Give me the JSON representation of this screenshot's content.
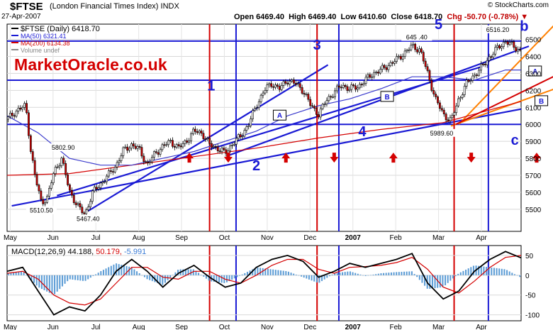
{
  "header": {
    "symbol": "$FTSE",
    "index_name": "(London Financial Times Index)",
    "index_type": "INDX",
    "date": "27-Apr-2007",
    "open": "Open 6469.40",
    "high": "High 6469.40",
    "low": "Low 6410.60",
    "close": "Close 6418.70",
    "chg": "Chg -50.70 (-0.78%)",
    "copyright": "© StockCharts.com"
  },
  "watermark": "MarketOracle.co.uk",
  "colors": {
    "accent_blue": "#1a1ad4",
    "accent_red": "#d40000",
    "orange": "#ff8000",
    "up_candle": "#ffffff",
    "down_candle": "#d40000"
  },
  "chart_data": {
    "type": "line",
    "title": "$FTSE (Daily) 6418.70",
    "legend": [
      {
        "label": "$FTSE (Daily) 6418.70",
        "color": "#000000"
      },
      {
        "label": "MA(50) 6321.41",
        "color": "#1a1ad4"
      },
      {
        "label": "MA(200) 6134.38",
        "color": "#d40000"
      },
      {
        "label": "Volume undef",
        "color": "#888888"
      }
    ],
    "x_ticks": [
      "May",
      "Jun",
      "Jul",
      "Aug",
      "Sep",
      "Oct",
      "Nov",
      "Dec",
      "2007",
      "Feb",
      "Mar",
      "Apr"
    ],
    "y_ticks": [
      5500,
      5600,
      5700,
      5800,
      5900,
      6000,
      6100,
      6200,
      6300,
      6400,
      6500
    ],
    "ylim": [
      5370,
      6590
    ],
    "price_points": [
      [
        0.0,
        6030
      ],
      [
        0.6,
        6080
      ],
      [
        1.2,
        6110
      ],
      [
        1.5,
        5860
      ],
      [
        1.8,
        5690
      ],
      [
        2.2,
        5540
      ],
      [
        2.6,
        5570
      ],
      [
        3.0,
        5720
      ],
      [
        3.5,
        5800
      ],
      [
        4.0,
        5610
      ],
      [
        4.5,
        5520
      ],
      [
        5.0,
        5470
      ],
      [
        5.5,
        5600
      ],
      [
        6.0,
        5650
      ],
      [
        6.5,
        5700
      ],
      [
        7.0,
        5760
      ],
      [
        7.5,
        5850
      ],
      [
        8.0,
        5880
      ],
      [
        8.5,
        5850
      ],
      [
        9.0,
        5760
      ],
      [
        9.5,
        5830
      ],
      [
        10.0,
        5870
      ],
      [
        10.5,
        5900
      ],
      [
        11.0,
        5860
      ],
      [
        11.5,
        5900
      ],
      [
        12.0,
        5960
      ],
      [
        12.5,
        5950
      ],
      [
        13.0,
        5880
      ],
      [
        13.5,
        5860
      ],
      [
        14.0,
        5830
      ],
      [
        14.5,
        5890
      ],
      [
        15.0,
        5930
      ],
      [
        15.5,
        6000
      ],
      [
        16.0,
        6110
      ],
      [
        16.5,
        6200
      ],
      [
        17.0,
        6240
      ],
      [
        17.5,
        6210
      ],
      [
        18.0,
        6260
      ],
      [
        18.5,
        6240
      ],
      [
        19.0,
        6200
      ],
      [
        19.5,
        6110
      ],
      [
        20.0,
        6060
      ],
      [
        20.5,
        6140
      ],
      [
        21.0,
        6190
      ],
      [
        21.5,
        6230
      ],
      [
        22.0,
        6210
      ],
      [
        22.5,
        6220
      ],
      [
        23.0,
        6260
      ],
      [
        23.5,
        6300
      ],
      [
        24.0,
        6320
      ],
      [
        24.5,
        6350
      ],
      [
        25.0,
        6380
      ],
      [
        25.5,
        6420
      ],
      [
        26.0,
        6460
      ],
      [
        26.5,
        6440
      ],
      [
        27.0,
        6300
      ],
      [
        27.5,
        6150
      ],
      [
        28.0,
        6060
      ],
      [
        28.5,
        6020
      ],
      [
        29.0,
        6150
      ],
      [
        29.5,
        6240
      ],
      [
        30.0,
        6290
      ],
      [
        30.5,
        6340
      ],
      [
        31.0,
        6400
      ],
      [
        31.5,
        6450
      ],
      [
        32.0,
        6490
      ],
      [
        32.5,
        6460
      ],
      [
        33.0,
        6430
      ]
    ],
    "x_span": 33,
    "ma50": [
      [
        0,
        6050
      ],
      [
        2,
        5950
      ],
      [
        4,
        5800
      ],
      [
        6,
        5760
      ],
      [
        8,
        5760
      ],
      [
        10,
        5800
      ],
      [
        12,
        5840
      ],
      [
        14,
        5900
      ],
      [
        16,
        5960
      ],
      [
        18,
        6050
      ],
      [
        20,
        6110
      ],
      [
        22,
        6150
      ],
      [
        24,
        6210
      ],
      [
        26,
        6280
      ],
      [
        28,
        6280
      ],
      [
        30,
        6260
      ],
      [
        32,
        6320
      ],
      [
        33,
        6320
      ]
    ],
    "ma200": [
      [
        0,
        5700
      ],
      [
        4,
        5710
      ],
      [
        8,
        5760
      ],
      [
        12,
        5810
      ],
      [
        16,
        5860
      ],
      [
        20,
        5920
      ],
      [
        24,
        5970
      ],
      [
        28,
        6010
      ],
      [
        32,
        6110
      ],
      [
        33,
        6134
      ]
    ],
    "price_labels": [
      {
        "text": "5802.90",
        "x": 3.6,
        "y": 5850
      },
      {
        "text": "5510.50",
        "x": 2.2,
        "y": 5480
      },
      {
        "text": "5467.40",
        "x": 5.2,
        "y": 5430
      },
      {
        "text": "645 .40",
        "x": 26.3,
        "y": 6500
      },
      {
        "text": "6516.20",
        "x": 31.5,
        "y": 6545
      },
      {
        "text": "5989.60",
        "x": 27.9,
        "y": 5935
      }
    ],
    "wave_labels": [
      {
        "text": "1",
        "x": 13.1,
        "y": 6200
      },
      {
        "text": "2",
        "x": 16.0,
        "y": 5730
      },
      {
        "text": "3",
        "x": 19.9,
        "y": 6440
      },
      {
        "text": "4",
        "x": 22.8,
        "y": 5930
      },
      {
        "text": "5",
        "x": 27.7,
        "y": 6560
      },
      {
        "text": "b",
        "x": 33.2,
        "y": 6550
      },
      {
        "text": "c",
        "x": 32.6,
        "y": 5880
      }
    ],
    "box_labels": [
      {
        "text": "A",
        "x": 17.5,
        "y": 6050
      },
      {
        "text": "B",
        "x": 24.4,
        "y": 6160
      },
      {
        "text": "A",
        "x": 33.9,
        "y": 6310
      },
      {
        "text": "B",
        "x": 34.3,
        "y": 6135
      }
    ],
    "macd": {
      "label": "MACD(12,26,9)",
      "value": "44.188",
      "signal_value": "50.179",
      "hist_value": "-5.991",
      "y_ticks": [
        50,
        0,
        -50,
        -100
      ],
      "ylim": [
        -115,
        75
      ],
      "macd_points": [
        [
          0,
          10
        ],
        [
          1,
          20
        ],
        [
          2,
          -40
        ],
        [
          3,
          -100
        ],
        [
          4,
          -80
        ],
        [
          5,
          -90
        ],
        [
          6,
          -50
        ],
        [
          7,
          10
        ],
        [
          8,
          40
        ],
        [
          9,
          10
        ],
        [
          10,
          -30
        ],
        [
          11,
          5
        ],
        [
          12,
          25
        ],
        [
          13,
          -5
        ],
        [
          14,
          -30
        ],
        [
          15,
          -20
        ],
        [
          16,
          20
        ],
        [
          17,
          40
        ],
        [
          18,
          50
        ],
        [
          19,
          35
        ],
        [
          20,
          -5
        ],
        [
          21,
          10
        ],
        [
          22,
          30
        ],
        [
          23,
          20
        ],
        [
          24,
          30
        ],
        [
          25,
          40
        ],
        [
          26,
          55
        ],
        [
          27,
          -20
        ],
        [
          28,
          -60
        ],
        [
          29,
          -40
        ],
        [
          30,
          10
        ],
        [
          31,
          40
        ],
        [
          32,
          60
        ],
        [
          33,
          44
        ]
      ],
      "signal_points": [
        [
          0,
          5
        ],
        [
          1,
          10
        ],
        [
          2,
          -10
        ],
        [
          3,
          -50
        ],
        [
          4,
          -70
        ],
        [
          5,
          -75
        ],
        [
          6,
          -60
        ],
        [
          7,
          -20
        ],
        [
          8,
          20
        ],
        [
          9,
          20
        ],
        [
          10,
          -5
        ],
        [
          11,
          -10
        ],
        [
          12,
          10
        ],
        [
          13,
          10
        ],
        [
          14,
          -10
        ],
        [
          15,
          -20
        ],
        [
          16,
          0
        ],
        [
          17,
          25
        ],
        [
          18,
          40
        ],
        [
          19,
          40
        ],
        [
          20,
          15
        ],
        [
          21,
          5
        ],
        [
          22,
          20
        ],
        [
          23,
          22
        ],
        [
          24,
          25
        ],
        [
          25,
          32
        ],
        [
          26,
          45
        ],
        [
          27,
          15
        ],
        [
          28,
          -30
        ],
        [
          29,
          -45
        ],
        [
          30,
          -15
        ],
        [
          31,
          20
        ],
        [
          32,
          45
        ],
        [
          33,
          50
        ]
      ]
    }
  }
}
